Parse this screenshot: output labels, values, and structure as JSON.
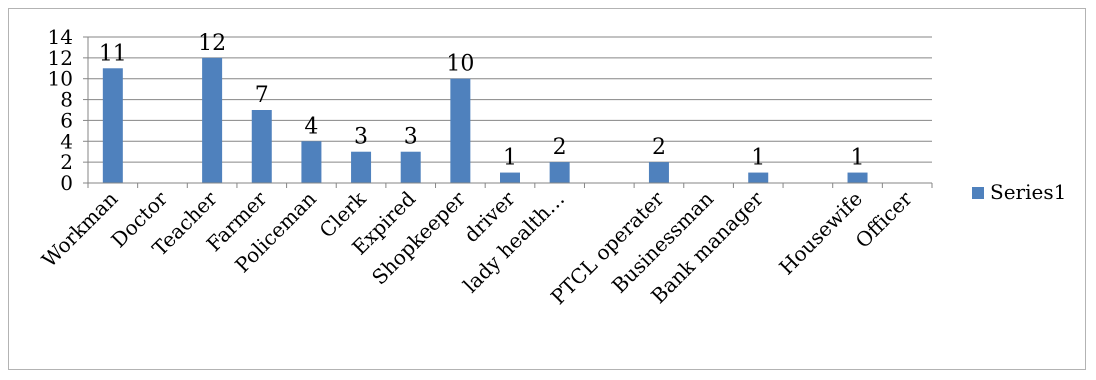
{
  "chart_data": {
    "type": "bar",
    "categories": [
      "Workman",
      "Doctor",
      "Teacher",
      "Farmer",
      "Policeman",
      "Clerk",
      "Expired",
      "Shopkeeper",
      "driver",
      "lady health…",
      "",
      "PTCL operater",
      "Businessman",
      "Bank manager",
      "",
      "Housewife",
      "Officer"
    ],
    "series": [
      {
        "name": "Series1",
        "color": "#4f81bd",
        "values": [
          11,
          0,
          12,
          7,
          4,
          3,
          3,
          10,
          1,
          2,
          0,
          2,
          0,
          1,
          0,
          1,
          0
        ],
        "data_labels": [
          "11",
          "",
          "12",
          "7",
          "4",
          "3",
          "3",
          "10",
          "1",
          "2",
          "",
          "2",
          "",
          "1",
          "",
          "1",
          ""
        ]
      }
    ],
    "ylim": [
      0,
      14
    ],
    "yticks": [
      0,
      2,
      4,
      6,
      8,
      10,
      12,
      14
    ],
    "xlabel": "",
    "ylabel": "",
    "grid": true,
    "legend": "right"
  }
}
